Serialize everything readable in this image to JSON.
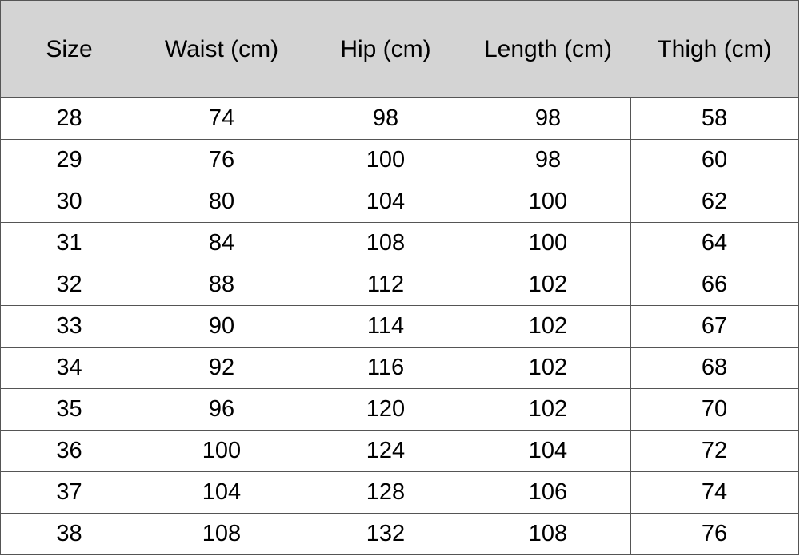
{
  "table": {
    "header": [
      "Size",
      "Waist (cm)",
      "Hip (cm)",
      "Length (cm)",
      "Thigh (cm)"
    ],
    "rows": [
      [
        28,
        74,
        98,
        98,
        58
      ],
      [
        29,
        76,
        100,
        98,
        60
      ],
      [
        30,
        80,
        104,
        100,
        62
      ],
      [
        31,
        84,
        108,
        100,
        64
      ],
      [
        32,
        88,
        112,
        102,
        66
      ],
      [
        33,
        90,
        114,
        102,
        67
      ],
      [
        34,
        92,
        116,
        102,
        68
      ],
      [
        35,
        96,
        120,
        102,
        70
      ],
      [
        36,
        100,
        124,
        104,
        72
      ],
      [
        37,
        104,
        128,
        106,
        74
      ],
      [
        38,
        108,
        132,
        108,
        76
      ]
    ]
  }
}
